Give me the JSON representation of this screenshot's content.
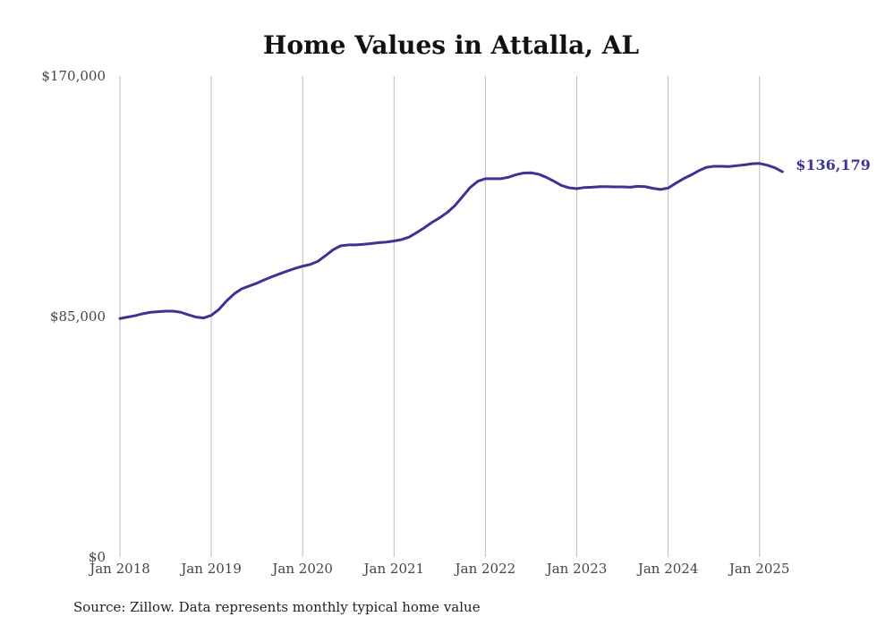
{
  "chart_data": {
    "type": "line",
    "title": "Home Values in Attalla, AL",
    "xlabel": "",
    "ylabel": "",
    "ylim": [
      0,
      170000
    ],
    "y_ticks": [
      {
        "value": 0,
        "label": "$0"
      },
      {
        "value": 85000,
        "label": "$85,000"
      },
      {
        "value": 170000,
        "label": "$170,000"
      }
    ],
    "x_ticks": [
      {
        "date": "2018-01",
        "label": "Jan 2018"
      },
      {
        "date": "2019-01",
        "label": "Jan 2019"
      },
      {
        "date": "2020-01",
        "label": "Jan 2020"
      },
      {
        "date": "2021-01",
        "label": "Jan 2021"
      },
      {
        "date": "2022-01",
        "label": "Jan 2022"
      },
      {
        "date": "2023-01",
        "label": "Jan 2023"
      },
      {
        "date": "2024-01",
        "label": "Jan 2024"
      },
      {
        "date": "2025-01",
        "label": "Jan 2025"
      }
    ],
    "grid": "vertical",
    "line_color": "#3b3494",
    "end_label": "$136,179",
    "source": "Source: Zillow. Data represents monthly typical home value",
    "series": [
      {
        "name": "",
        "x": [
          "2018-01",
          "2018-02",
          "2018-03",
          "2018-04",
          "2018-05",
          "2018-06",
          "2018-07",
          "2018-08",
          "2018-09",
          "2018-10",
          "2018-11",
          "2018-12",
          "2019-01",
          "2019-02",
          "2019-03",
          "2019-04",
          "2019-05",
          "2019-06",
          "2019-07",
          "2019-08",
          "2019-09",
          "2019-10",
          "2019-11",
          "2019-12",
          "2020-01",
          "2020-02",
          "2020-03",
          "2020-04",
          "2020-05",
          "2020-06",
          "2020-07",
          "2020-08",
          "2020-09",
          "2020-10",
          "2020-11",
          "2020-12",
          "2021-01",
          "2021-02",
          "2021-03",
          "2021-04",
          "2021-05",
          "2021-06",
          "2021-07",
          "2021-08",
          "2021-09",
          "2021-10",
          "2021-11",
          "2021-12",
          "2022-01",
          "2022-02",
          "2022-03",
          "2022-04",
          "2022-05",
          "2022-06",
          "2022-07",
          "2022-08",
          "2022-09",
          "2022-10",
          "2022-11",
          "2022-12",
          "2023-01",
          "2023-02",
          "2023-03",
          "2023-04",
          "2023-05",
          "2023-06",
          "2023-07",
          "2023-08",
          "2023-09",
          "2023-10",
          "2023-11",
          "2023-12",
          "2024-01",
          "2024-02",
          "2024-03",
          "2024-04",
          "2024-05",
          "2024-06",
          "2024-07",
          "2024-08",
          "2024-09",
          "2024-10",
          "2024-11",
          "2024-12",
          "2025-01",
          "2025-02",
          "2025-03",
          "2025-04"
        ],
        "values": [
          84300,
          84800,
          85300,
          86000,
          86500,
          86700,
          86900,
          86900,
          86500,
          85600,
          84800,
          84500,
          85400,
          87500,
          90500,
          93000,
          94800,
          95800,
          96800,
          98000,
          99100,
          100100,
          101100,
          102000,
          102800,
          103400,
          104500,
          106500,
          108600,
          110000,
          110300,
          110300,
          110500,
          110800,
          111100,
          111300,
          111700,
          112200,
          113100,
          114700,
          116400,
          118300,
          119900,
          121800,
          124200,
          127400,
          130600,
          132800,
          133700,
          133700,
          133700,
          134200,
          135100,
          135700,
          135800,
          135300,
          134200,
          132800,
          131300,
          130500,
          130200,
          130600,
          130700,
          130900,
          130900,
          130800,
          130800,
          130700,
          131000,
          130900,
          130300,
          129900,
          130400,
          132100,
          133700,
          135000,
          136500,
          137700,
          138100,
          138100,
          138000,
          138300,
          138600,
          139000,
          139100,
          138500,
          137600,
          136179
        ]
      }
    ]
  }
}
